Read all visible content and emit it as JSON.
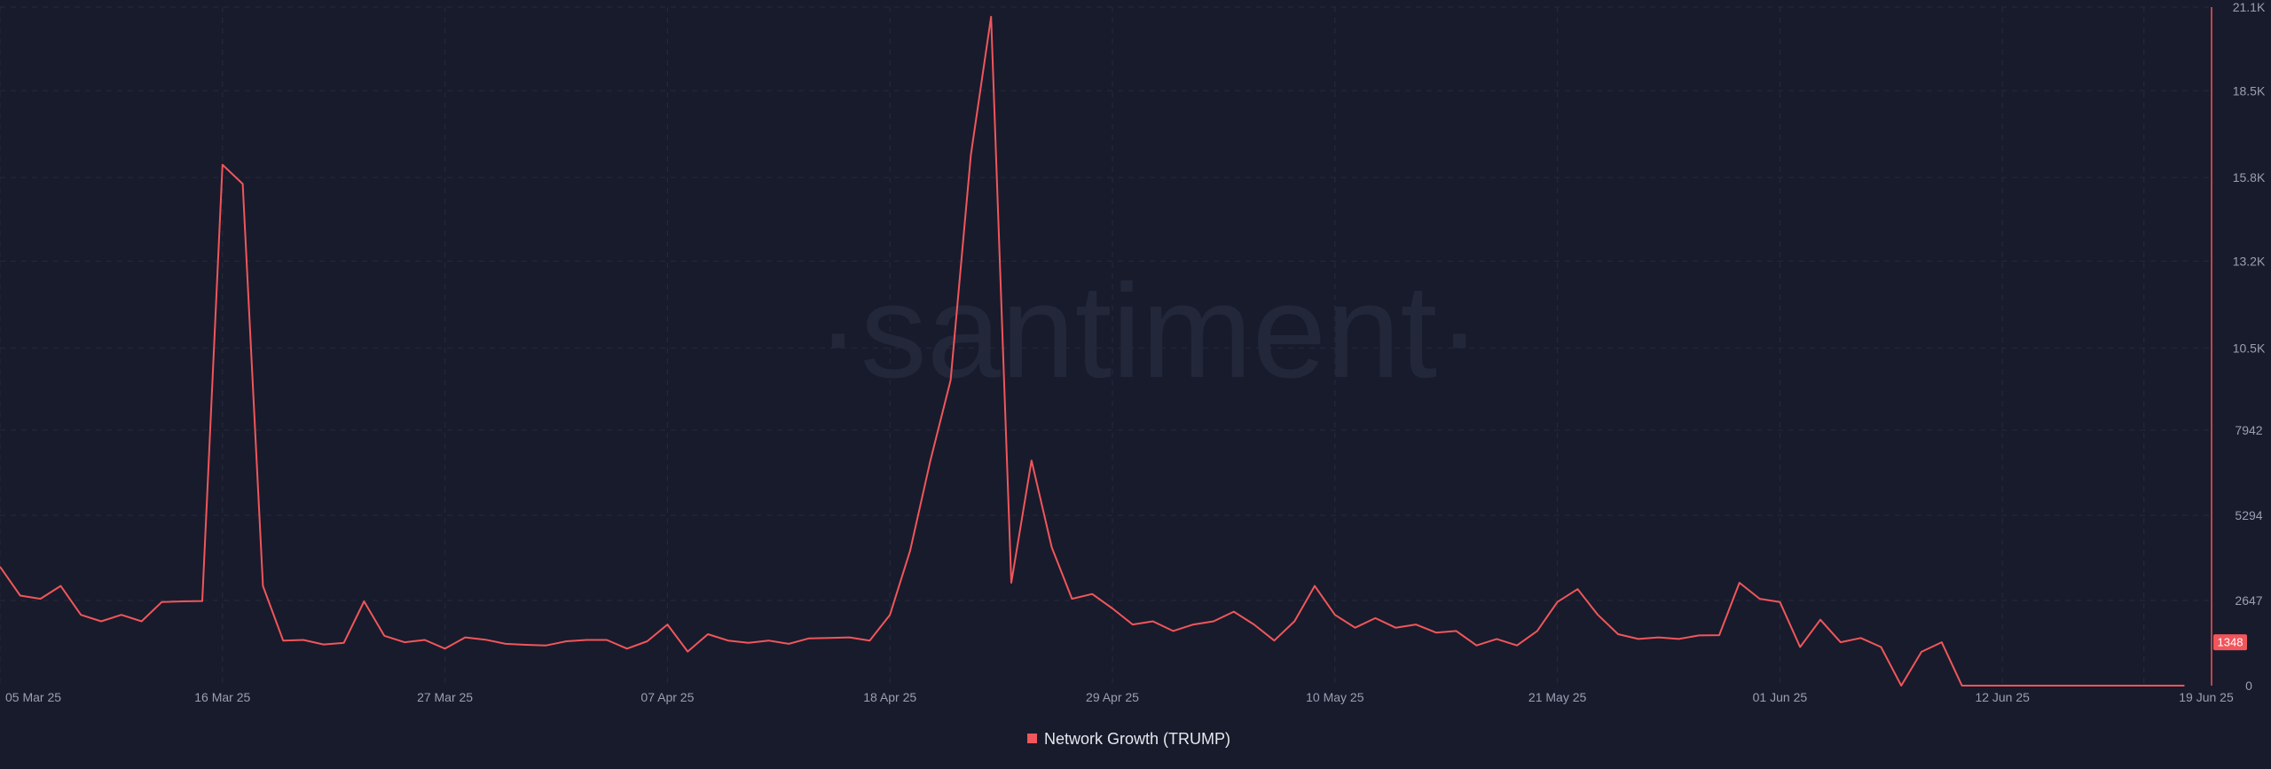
{
  "chart_data": {
    "type": "line",
    "title": "",
    "xlabel": "",
    "ylabel": "",
    "watermark": "·santiment·",
    "series": [
      {
        "name": "Network Growth (TRUMP)",
        "color": "#f0565b",
        "values": [
          3700,
          2800,
          2700,
          3100,
          2200,
          2000,
          2200,
          2000,
          2600,
          2620,
          2630,
          16200,
          15600,
          3100,
          1400,
          1420,
          1280,
          1330,
          2620,
          1550,
          1350,
          1420,
          1150,
          1500,
          1430,
          1300,
          1270,
          1250,
          1380,
          1420,
          1420,
          1150,
          1380,
          1900,
          1060,
          1600,
          1400,
          1330,
          1400,
          1300,
          1470,
          1480,
          1500,
          1400,
          2200,
          4200,
          7000,
          9500,
          16500,
          20800,
          3200,
          7000,
          4300,
          2700,
          2850,
          2400,
          1900,
          2000,
          1700,
          1900,
          2000,
          2300,
          1900,
          1400,
          2000,
          3100,
          2200,
          1800,
          2100,
          1800,
          1900,
          1650,
          1700,
          1250,
          1450,
          1250,
          1700,
          2600,
          3000,
          2200,
          1600,
          1450,
          1500,
          1450,
          1560,
          1570,
          3200,
          2700,
          2600,
          1200,
          2050,
          1350,
          1480,
          1200,
          0,
          1050,
          1348,
          0,
          0,
          0,
          0,
          0,
          0,
          0,
          0,
          0,
          0,
          0,
          0
        ]
      }
    ],
    "x_ticks": [
      {
        "label": "05 Mar 25",
        "index": 0
      },
      {
        "label": "16 Mar 25",
        "index": 11
      },
      {
        "label": "27 Mar 25",
        "index": 22
      },
      {
        "label": "07 Apr 25",
        "index": 33
      },
      {
        "label": "18 Apr 25",
        "index": 44
      },
      {
        "label": "29 Apr 25",
        "index": 55
      },
      {
        "label": "10 May 25",
        "index": 66
      },
      {
        "label": "21 May 25",
        "index": 77
      },
      {
        "label": "01 Jun 25",
        "index": 88
      },
      {
        "label": "12 Jun 25",
        "index": 99
      },
      {
        "label": "19 Jun 25",
        "index": 106
      }
    ],
    "y_ticks": [
      {
        "label": "0",
        "value": 0
      },
      {
        "label": "2647",
        "value": 2647
      },
      {
        "label": "5294",
        "value": 5294
      },
      {
        "label": "7942",
        "value": 7942
      },
      {
        "label": "10.5K",
        "value": 10500
      },
      {
        "label": "13.2K",
        "value": 13200
      },
      {
        "label": "15.8K",
        "value": 15800
      },
      {
        "label": "18.5K",
        "value": 18500
      },
      {
        "label": "21.1K",
        "value": 21100
      }
    ],
    "ylim": [
      0,
      21100
    ],
    "grid": true,
    "legend_position": "bottom-center",
    "last_value_label": "1348"
  }
}
